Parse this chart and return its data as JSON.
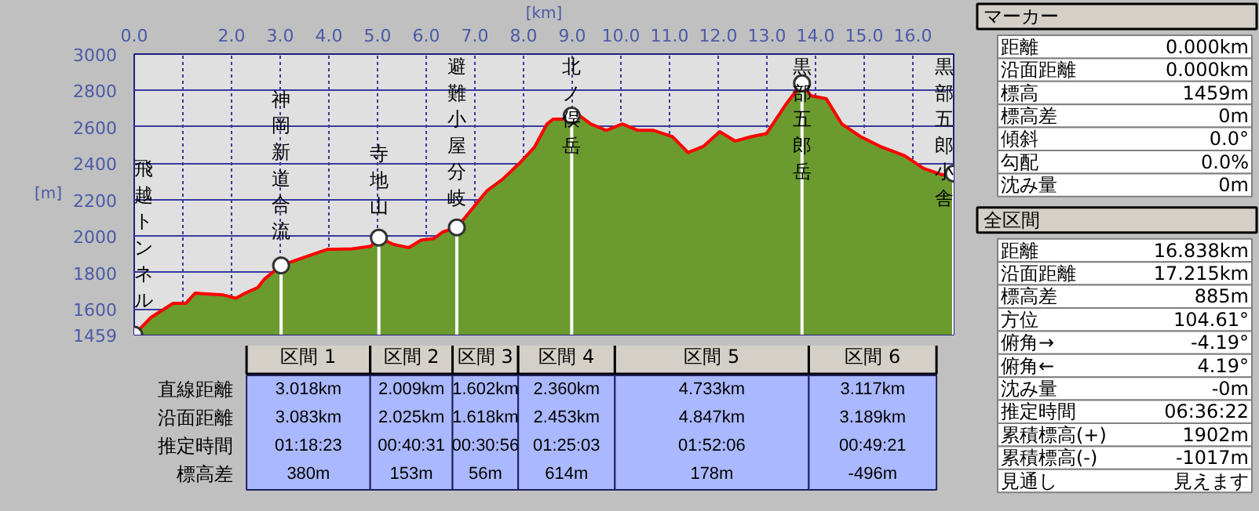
{
  "chart_data": [
    {
      "type": "area",
      "xlabel": "[km]",
      "ylabel": "[m]",
      "x": [
        0,
        0.35,
        0.8,
        1.06,
        1.25,
        1.83,
        2.09,
        2.28,
        2.54,
        2.67,
        3.018,
        3.7,
        3.96,
        4.48,
        4.86,
        5.027,
        5.32,
        5.64,
        5.9,
        6.15,
        6.35,
        6.629,
        6.93,
        7.25,
        7.57,
        7.9,
        8.22,
        8.48,
        8.61,
        8.93,
        8.989,
        9.12,
        9.38,
        9.7,
        10.03,
        10.35,
        10.67,
        11.06,
        11.38,
        11.7,
        12.03,
        12.35,
        12.67,
        12.99,
        13.38,
        13.722,
        13.9,
        14.22,
        14.54,
        14.93,
        15.32,
        15.83,
        16.22,
        16.61,
        16.838
      ],
      "series": [
        {
          "type": "area",
          "color": "#6b9b2e",
          "values": [
            1459,
            1555,
            1631,
            1631,
            1687,
            1677,
            1659,
            1687,
            1718,
            1763,
            1839,
            1903,
            1927,
            1930,
            1944,
            1992,
            1955,
            1937,
            1979,
            1986,
            2024,
            2048,
            2146,
            2250,
            2313,
            2396,
            2487,
            2616,
            2643,
            2643,
            2662,
            2668,
            2616,
            2581,
            2616,
            2581,
            2581,
            2546,
            2459,
            2494,
            2574,
            2522,
            2546,
            2563,
            2720,
            2840,
            2772,
            2755,
            2616,
            2546,
            2494,
            2442,
            2372,
            2337,
            2344
          ]
        },
        {
          "type": "lollipop",
          "color": "#ffffff",
          "x": [
            0,
            3.018,
            5.027,
            6.629,
            8.989,
            13.722,
            16.838
          ],
          "values": [
            1459,
            1839,
            1992,
            2048,
            2662,
            2840,
            2344
          ]
        }
      ],
      "xlim": [
        0,
        16.838
      ],
      "ylim": [
        1459,
        3000
      ],
      "xticks": [
        {
          "value": 0,
          "label": "0.0"
        },
        {
          "value": 1,
          "label": null
        },
        {
          "value": 2,
          "label": "2.0"
        },
        {
          "value": 3,
          "label": "3.0"
        },
        {
          "value": 4,
          "label": "4.0"
        },
        {
          "value": 5,
          "label": "5.0"
        },
        {
          "value": 6,
          "label": "6.0"
        },
        {
          "value": 7,
          "label": "7.0"
        },
        {
          "value": 8,
          "label": "8.0"
        },
        {
          "value": 9,
          "label": "9.0"
        },
        {
          "value": 10,
          "label": "10.0"
        },
        {
          "value": 11,
          "label": "11.0"
        },
        {
          "value": 12,
          "label": "12.0"
        },
        {
          "value": 13,
          "label": "13.0"
        },
        {
          "value": 14,
          "label": "14.0"
        },
        {
          "value": 15,
          "label": "15.0"
        },
        {
          "value": 16,
          "label": "16.0"
        }
      ],
      "yticks": [
        1459,
        1600,
        1800,
        2000,
        2200,
        2400,
        2600,
        2800,
        3000
      ],
      "grid": true,
      "annotations": [
        {
          "text": "飛越トンネル",
          "x": 0,
          "y": 1459
        },
        {
          "text": "神岡新道合流",
          "x": 3.018,
          "y": 1839
        },
        {
          "text": "寺地山",
          "x": 5.027,
          "y": 1992
        },
        {
          "text": "避難小屋分岐",
          "x": 6.629,
          "y": 2048
        },
        {
          "text": "北ノ俣岳",
          "x": 8.989,
          "y": 2662
        },
        {
          "text": "黒部五郎岳",
          "x": 13.722,
          "y": 2840
        },
        {
          "text": "黒部五郎小舎",
          "x": 16.838,
          "y": 2344
        }
      ]
    },
    {
      "type": "other",
      "categories": [
        "区間 1",
        "区間 2",
        "区間 3",
        "区間 4",
        "区間 5",
        "区間 6"
      ],
      "y_categories": [
        "直線距離",
        "沿面距離",
        "推定時間",
        "標高差"
      ],
      "cell_labels": [
        [
          "3.018km",
          "2.009km",
          "1.602km",
          "2.360km",
          "4.733km",
          "3.117km"
        ],
        [
          "3.083km",
          "2.025km",
          "1.618km",
          "2.453km",
          "4.847km",
          "3.189km"
        ],
        [
          "01:18:23",
          "00:40:31",
          "00:30:56",
          "01:25:03",
          "01:52:06",
          "00:49:21"
        ],
        [
          "380m",
          "153m",
          "56m",
          "614m",
          "178m",
          "-496m"
        ]
      ]
    },
    {
      "type": "other",
      "title": "マーカー",
      "y_categories": [
        "距離",
        "沿面距離",
        "標高",
        "標高差",
        "傾斜",
        "勾配",
        "沈み量"
      ],
      "cell_labels": [
        [
          "0.000km"
        ],
        [
          "0.000km"
        ],
        [
          "1459m"
        ],
        [
          "0m"
        ],
        [
          "0.0°"
        ],
        [
          "0.0%"
        ],
        [
          "0m"
        ]
      ]
    },
    {
      "type": "other",
      "title": "全区間",
      "y_categories": [
        "距離",
        "沿面距離",
        "標高差",
        "方位",
        "俯角→",
        "俯角←",
        "沈み量",
        "推定時間",
        "累積標高(+)",
        "累積標高(-)",
        "見通し"
      ],
      "cell_labels": [
        [
          "16.838km"
        ],
        [
          "17.215km"
        ],
        [
          "885m"
        ],
        [
          "104.61°"
        ],
        [
          "-4.19°"
        ],
        [
          "4.19°"
        ],
        [
          "-0m"
        ],
        [
          "06:36:22"
        ],
        [
          "1902m"
        ],
        [
          "-1017m"
        ],
        [
          "見えます"
        ]
      ]
    }
  ]
}
